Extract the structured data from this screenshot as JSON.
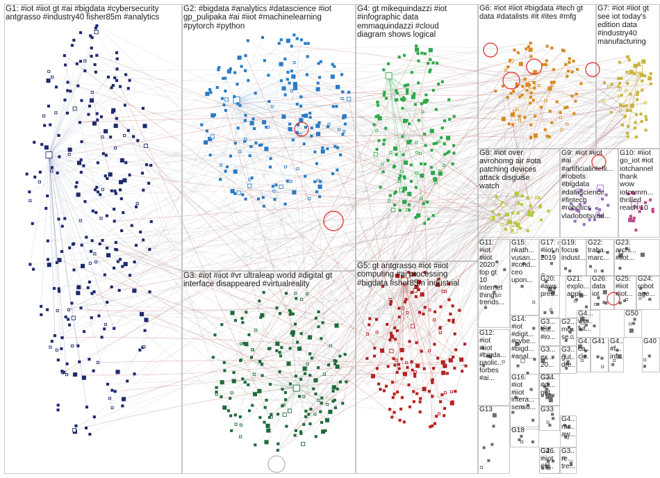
{
  "groups": [
    {
      "id": "G1",
      "label": "G1: #iot #iiot gt #ai #bigdata #cybersecurity\nantgrasso #industry40 fisher85m #analytics",
      "color": "#1e2a6e"
    },
    {
      "id": "G2",
      "label": "G2: #bigdata #analytics #datascience #iot\ngp_pulipaka #ai #iiot #machinelearning\n#pytorch #python",
      "color": "#2b7bc4"
    },
    {
      "id": "G3",
      "label": "G3: #iot #iiot #vr ultraleap world #digital gt\ninterface disappeared #virtualreality",
      "color": "#1e6b3a"
    },
    {
      "id": "G4",
      "label": "G4: gt mikequindazzi #iot\n#infographic data\nemmaquindazzi #cloud\ndiagram shows logical",
      "color": "#2fa84a"
    },
    {
      "id": "G5",
      "label": "G5: gt antgrasso #iot #iiot\ncomputing #ai processing\n#bigdata fisher85m industrial",
      "color": "#b32222"
    },
    {
      "id": "G6",
      "label": "G6: #iot #iiot #bigdata #tech gt\ndata #datalists #it #ites #mfg",
      "color": "#d98a1e"
    },
    {
      "id": "G7",
      "label": "G7: #iot #iiot gt\nsee iot today's\nedition data\n#industry40\nmanufacturing",
      "color": "#c8b43c"
    },
    {
      "id": "G8",
      "label": "G8: #iot over\navrohomg air #ota\npatching devices\nattack disguise\nwatch",
      "color": "#b5c93a"
    },
    {
      "id": "G9",
      "label": "G9: #iot #iiot\n#ai\n#artificialintelli...\n#robots\n#bigdata\n#datascience\n#fintech\n#robotics\nvladobotsvad...",
      "color": "#9a6fc2"
    },
    {
      "id": "G10",
      "label": "G10: #iiot\ngo_iot #iot\niotchannel\nthank\nwow\niotcomm...\nthrilled\nreach 10",
      "color": "#c24a8a"
    },
    {
      "id": "G11",
      "label": "G11:\n#iot\n#iiot\n2020\ntop gt\n10\ninternet\nthings\ntrends...",
      "color": "#6e6e6e"
    },
    {
      "id": "G12",
      "label": "G12:\n#iot\n#iiot\n#bigda...\npaolic...\nforbes\n#ai...",
      "color": "#6e6e6e"
    },
    {
      "id": "G13",
      "label": "G13",
      "color": "#6e6e6e"
    },
    {
      "id": "G14",
      "label": "G14:\n#iot\n#digit...\n#cybe...\n#bigd...\n#anal...",
      "color": "#6e6e6e"
    },
    {
      "id": "G15",
      "label": "G15:\nnkath...\nvusan...\n#cond...\nceo\nupon...",
      "color": "#6e6e6e"
    },
    {
      "id": "G16",
      "label": "G16:\n#iot\n#iiot\ninterа...\nsenso...",
      "color": "#6e6e6e"
    },
    {
      "id": "G17",
      "label": "G17: #iot\n#iiot nov\n2019",
      "color": "#6e6e6e"
    },
    {
      "id": "G18",
      "label": "G18",
      "color": "#6e6e6e"
    },
    {
      "id": "G19",
      "label": "G19:\nfocus\nindust...",
      "color": "#6e6e6e"
    },
    {
      "id": "G20",
      "label": "G20:\n#aws\npres...",
      "color": "#6e6e6e"
    },
    {
      "id": "G21",
      "label": "G21:\nexplo...\nappli...",
      "color": "#6e6e6e"
    },
    {
      "id": "G22",
      "label": "G22:\ntraba...\nmarc...",
      "color": "#6e6e6e"
    },
    {
      "id": "G23",
      "label": "G23:\narchi...\n#iiot...",
      "color": "#6e6e6e"
    },
    {
      "id": "G24",
      "label": "G24:\nrobot\nage...",
      "color": "#6e6e6e"
    },
    {
      "id": "G25",
      "label": "G25:\n#iiot\n#iot...",
      "color": "#6e6e6e"
    },
    {
      "id": "G26",
      "label": "G26:\ndata\niot",
      "color": "#6e6e6e"
    },
    {
      "id": "G33",
      "label": "G33",
      "color": "#6e6e6e"
    },
    {
      "id": "G34",
      "label": "G34",
      "color": "#6e6e6e"
    },
    {
      "id": "G40",
      "label": "G40",
      "color": "#6e6e6e"
    },
    {
      "id": "G41",
      "label": "G41",
      "color": "#6e6e6e"
    },
    {
      "id": "G46",
      "label": "G46",
      "color": "#6e6e6e"
    },
    {
      "id": "G50",
      "label": "G50",
      "color": "#6e6e6e"
    },
    {
      "id": "G3x1",
      "label": "G3...\nlea...\n#io...",
      "color": "#6e6e6e"
    },
    {
      "id": "G3x2",
      "label": "G3...\nex...\n20...",
      "color": "#6e6e6e"
    },
    {
      "id": "G3x3",
      "label": "G3...\ngut...\ndre...",
      "color": "#6e6e6e"
    },
    {
      "id": "G3x4",
      "label": "G3...\nre...\ntre...",
      "color": "#6e6e6e"
    },
    {
      "id": "G2x1",
      "label": "G2...\nmo...\nse...",
      "color": "#6e6e6e"
    },
    {
      "id": "G2x2",
      "label": "G2...\n#di...\nnet...",
      "color": "#6e6e6e"
    },
    {
      "id": "G2x3",
      "label": "G2...\n#iiot\n#s...",
      "color": "#6e6e6e"
    },
    {
      "id": "G4x1",
      "label": "G4...\nwe...\nfut...",
      "color": "#6e6e6e"
    },
    {
      "id": "G4x2",
      "label": "G4...\nrac...\naw...",
      "color": "#6e6e6e"
    },
    {
      "id": "G4x3",
      "label": "G4...\nca...\ncle...",
      "color": "#6e6e6e"
    },
    {
      "id": "G4x4",
      "label": "G4...\n#f...\ninf...",
      "color": "#6e6e6e"
    }
  ]
}
